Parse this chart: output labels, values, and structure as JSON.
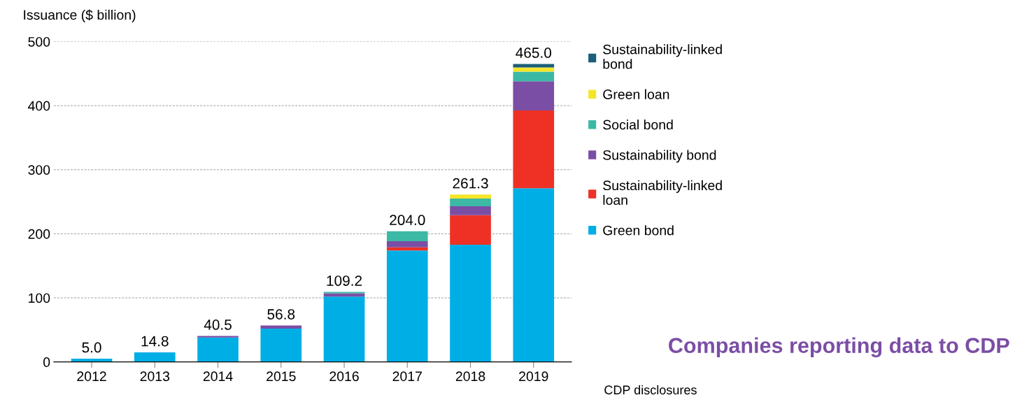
{
  "chart_data": {
    "type": "bar",
    "stacked": true,
    "ylabel": "Issuance ($ billion)",
    "categories": [
      "2012",
      "2013",
      "2014",
      "2015",
      "2016",
      "2017",
      "2018",
      "2019"
    ],
    "series": [
      {
        "name": "Green bond",
        "color": "#00aee6",
        "values": [
          5.0,
          14.8,
          38,
          52,
          102,
          174,
          183,
          271
        ]
      },
      {
        "name": "Sustainability-linked\nloan",
        "color": "#ee3124",
        "values": [
          0,
          0,
          0,
          0,
          0,
          5,
          46,
          121.5
        ]
      },
      {
        "name": "Sustainability bond",
        "color": "#7b4ea5",
        "values": [
          0,
          0,
          2.5,
          4.8,
          5,
          9.5,
          14,
          45.5
        ]
      },
      {
        "name": "Social bond",
        "color": "#3cb9a5",
        "values": [
          0,
          0,
          0,
          0,
          2.2,
          15.5,
          12,
          15
        ]
      },
      {
        "name": "Green loan",
        "color": "#f5e52a",
        "values": [
          0,
          0,
          0,
          0,
          0,
          0,
          6.3,
          6.7
        ]
      },
      {
        "name": "Sustainability-linked\nbond",
        "color": "#1b5f7a",
        "values": [
          0,
          0,
          0,
          0,
          0,
          0,
          0,
          5.3
        ]
      }
    ],
    "totals": [
      "5.0",
      "14.8",
      "40.5",
      "56.8",
      "109.2",
      "204.0",
      "261.3",
      "465.0"
    ],
    "ylim": [
      0,
      500
    ],
    "yticks": [
      0,
      100,
      200,
      300,
      400,
      500
    ],
    "grid": "y",
    "legend": "right",
    "annotations": [
      "Companies reporting data to CDP",
      "CDP disclosures"
    ]
  }
}
